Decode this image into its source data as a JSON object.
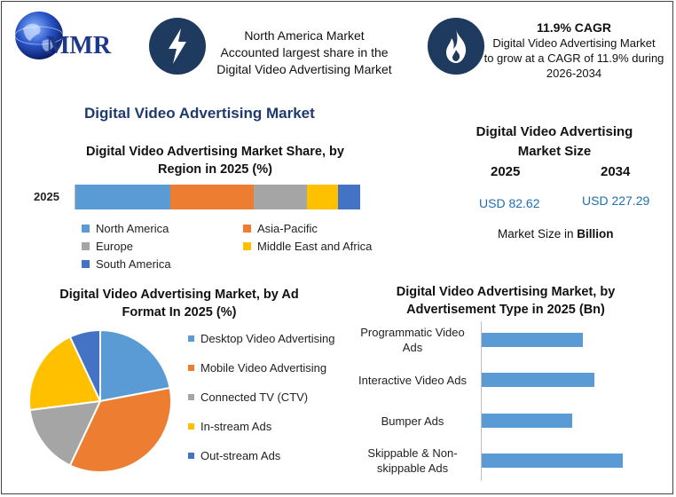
{
  "header": {
    "logo_text": "MMR",
    "box1_text": [
      "North America Market",
      "Accounted largest share in the",
      "Digital Video Advertising Market"
    ],
    "box2_title": "11.9% CAGR",
    "box2_text": [
      "Digital Video Advertising Market",
      "to grow at a CAGR of 11.9% during",
      "2026-2034"
    ],
    "icons": [
      "globe-icon",
      "lightning-icon",
      "flame-icon"
    ]
  },
  "main_title": "Digital Video Advertising Market",
  "market_size": {
    "title": [
      "Digital Video Advertising",
      "Market Size"
    ],
    "year1": "2025",
    "year2": "2034",
    "value1": "USD 82.62",
    "value2": "USD 227.29",
    "unit_note_prefix": "Market Size in ",
    "unit_note_bold": "Billion"
  },
  "chart_data": [
    {
      "type": "bar",
      "orientation": "horizontal-stacked-100",
      "title": "Digital Video Advertising Market Share, by Region in 2025 (%)",
      "categories": [
        "2025"
      ],
      "series": [
        {
          "name": "North America",
          "values": [
            33
          ],
          "color": "#5b9bd5"
        },
        {
          "name": "Asia-Pacific",
          "values": [
            29
          ],
          "color": "#ed7d31"
        },
        {
          "name": "Europe",
          "values": [
            18.5
          ],
          "color": "#a5a5a5"
        },
        {
          "name": "Middle East and Africa",
          "values": [
            11
          ],
          "color": "#ffc000"
        },
        {
          "name": "South America",
          "values": [
            7.5
          ],
          "color": "#4472c4"
        }
      ],
      "xlim": [
        0,
        100
      ],
      "legend": "bottom"
    },
    {
      "type": "pie",
      "title": "Digital Video Advertising Market, by Ad Format In 2025 (%)",
      "labels": [
        "Desktop Video Advertising",
        "Mobile Video Advertising",
        "Connected TV (CTV)",
        "In-stream Ads",
        "Out-stream Ads"
      ],
      "values": [
        22,
        35,
        16,
        20,
        7
      ],
      "colors": [
        "#5b9bd5",
        "#ed7d31",
        "#a5a5a5",
        "#ffc000",
        "#4472c4"
      ],
      "legend": "right"
    },
    {
      "type": "bar",
      "orientation": "horizontal",
      "title": "Digital Video Advertising Market, by Advertisement Type in 2025 (Bn)",
      "categories": [
        [
          "Programmatic Video",
          "Ads"
        ],
        [
          "Interactive Video Ads"
        ],
        [
          "Bumper Ads"
        ],
        [
          "Skippable & Non-",
          "skippable Ads"
        ]
      ],
      "values": [
        18,
        20,
        16,
        25
      ],
      "xlim": [
        0,
        28
      ],
      "color": "#5b9bd5",
      "grid": false
    }
  ]
}
